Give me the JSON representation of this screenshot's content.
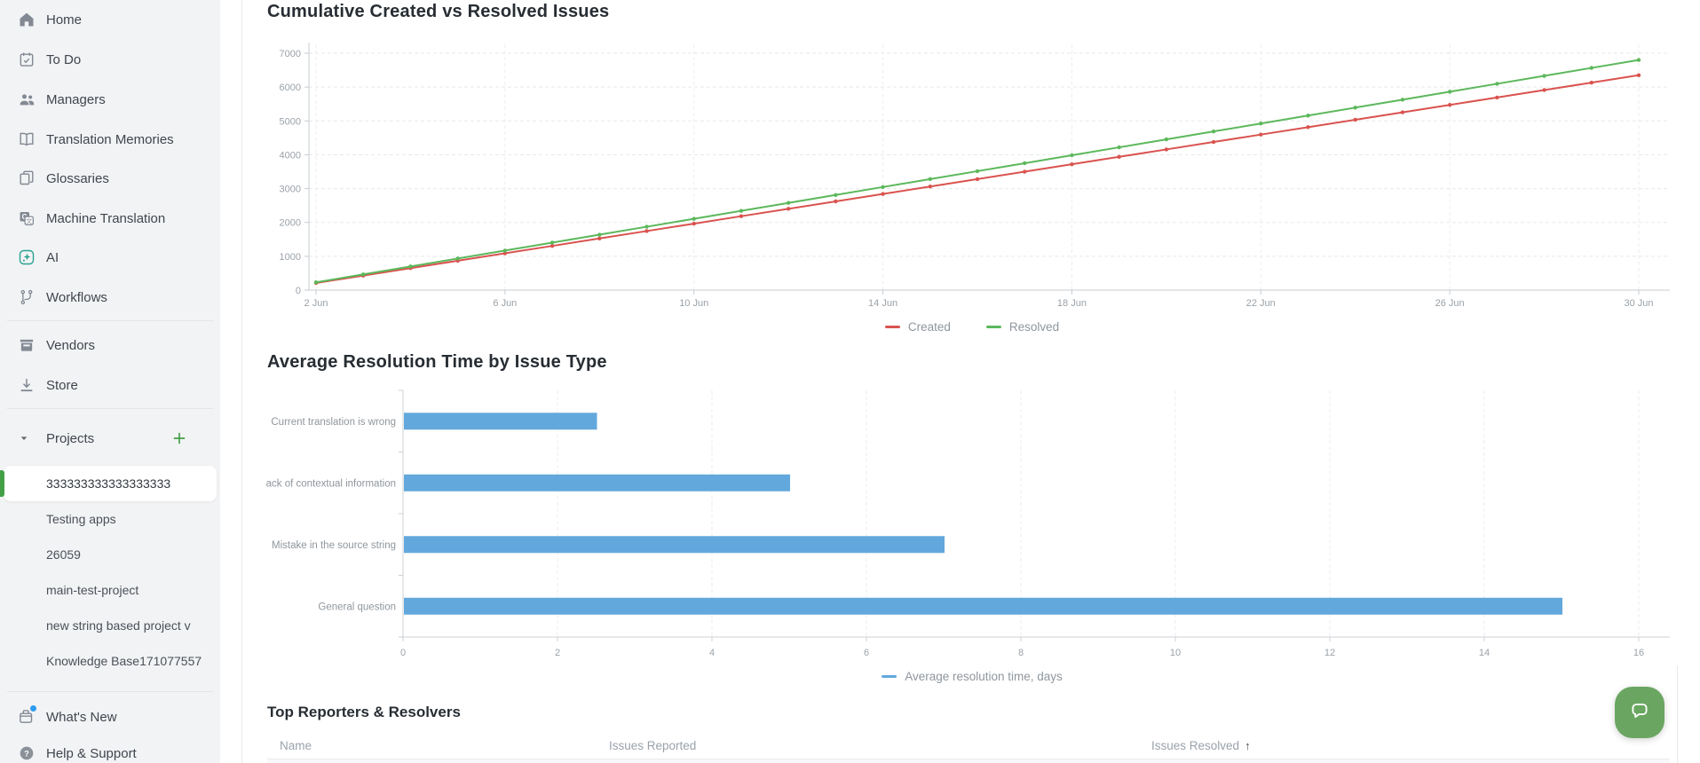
{
  "sidebar": {
    "main_items": [
      {
        "label": "Home",
        "icon": "home-icon"
      },
      {
        "label": "To Do",
        "icon": "todo-calendar-icon"
      },
      {
        "label": "Managers",
        "icon": "managers-icon"
      },
      {
        "label": "Translation Memories",
        "icon": "translation-memories-icon"
      },
      {
        "label": "Glossaries",
        "icon": "glossaries-icon"
      },
      {
        "label": "Machine Translation",
        "icon": "machine-translation-icon"
      },
      {
        "label": "AI",
        "icon": "ai-sparkle-icon"
      },
      {
        "label": "Workflows",
        "icon": "workflows-icon"
      }
    ],
    "secondary_items": [
      {
        "label": "Vendors",
        "icon": "vendors-icon"
      },
      {
        "label": "Store",
        "icon": "store-icon"
      }
    ],
    "projects_section": {
      "header": "Projects",
      "add_button": "+",
      "items": [
        "333333333333333333",
        "Testing apps",
        "26059",
        "main-test-project",
        "new string based project v",
        "Knowledge Base171077557"
      ],
      "selected": "333333333333333333"
    },
    "footer_items": [
      {
        "label": "What's New",
        "icon": "whats-new-icon",
        "badge": true
      },
      {
        "label": "Help & Support",
        "icon": "help-icon"
      }
    ]
  },
  "chart_data": [
    {
      "type": "line",
      "title": "Cumulative Created vs Resolved Issues",
      "x_tick_labels": [
        "2 Jun",
        "6 Jun",
        "10 Jun",
        "14 Jun",
        "18 Jun",
        "22 Jun",
        "26 Jun",
        "30 Jun"
      ],
      "days": [
        2,
        3,
        4,
        5,
        6,
        7,
        8,
        9,
        10,
        11,
        12,
        13,
        14,
        15,
        16,
        17,
        18,
        19,
        20,
        21,
        22,
        23,
        24,
        25,
        26,
        27,
        28,
        29,
        30
      ],
      "ylim": [
        0,
        7000
      ],
      "y_ticks": [
        0,
        1000,
        2000,
        3000,
        4000,
        5000,
        6000,
        7000
      ],
      "grid": true,
      "legend_position": "bottom",
      "series": [
        {
          "name": "Created",
          "color": "#d9534f",
          "values": [
            210,
            429,
            649,
            868,
            1087,
            1306,
            1526,
            1745,
            1964,
            2184,
            2403,
            2622,
            2841,
            3061,
            3280,
            3499,
            3719,
            3938,
            4157,
            4377,
            4596,
            4815,
            5034,
            5254,
            5473,
            5692,
            5912,
            6131,
            6350
          ]
        },
        {
          "name": "Resolved",
          "color": "#5cb85c",
          "values": [
            230,
            465,
            699,
            934,
            1169,
            1403,
            1638,
            1873,
            2107,
            2342,
            2577,
            2811,
            3046,
            3281,
            3515,
            3750,
            3985,
            4219,
            4454,
            4689,
            4923,
            5158,
            5393,
            5627,
            5862,
            6097,
            6331,
            6566,
            6800
          ]
        }
      ]
    },
    {
      "type": "bar",
      "orientation": "horizontal",
      "title": "Average Resolution Time by Issue Type",
      "categories": [
        "Current translation is wrong",
        "Lack of contextual information",
        "Mistake in the source string",
        "General question"
      ],
      "values": [
        2.5,
        5,
        7,
        15
      ],
      "xlim": [
        0,
        16
      ],
      "x_ticks": [
        0,
        2,
        4,
        6,
        8,
        10,
        12,
        14,
        16
      ],
      "bar_color": "#62a8dc",
      "grid": true,
      "legend": "Average resolution time, days",
      "legend_position": "bottom"
    }
  ],
  "table": {
    "title": "Top Reporters & Resolvers",
    "columns": [
      "Name",
      "Issues Reported",
      "Issues Resolved"
    ],
    "sort_arrow": "↑",
    "sorted_by": "Issues Resolved"
  },
  "theme": {
    "sidebar_bg": "#f2f3f5",
    "accent_green": "#43a047",
    "created_color": "#d9534f",
    "resolved_color": "#5cb85c",
    "bar_blue": "#62a8dc",
    "chat_green": "#6aa661",
    "ai_teal": "#2aa390"
  }
}
